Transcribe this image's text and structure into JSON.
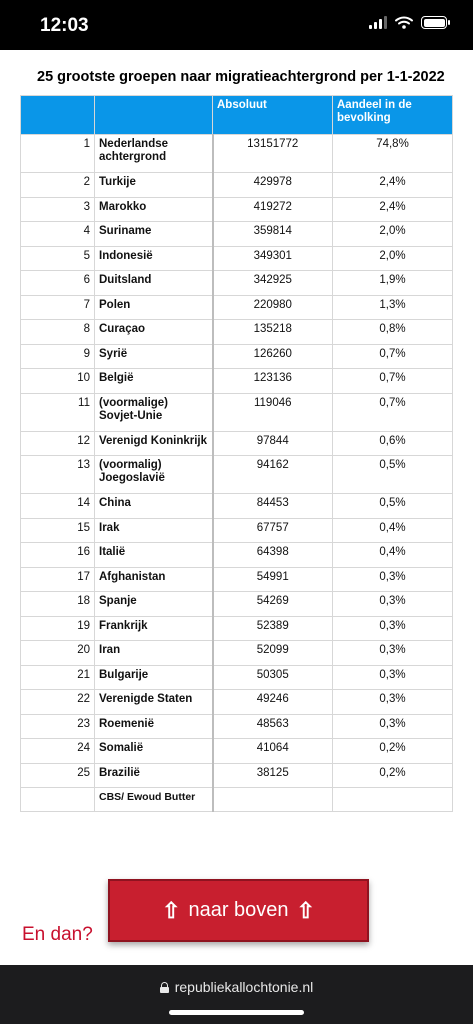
{
  "status_bar": {
    "time": "12:03"
  },
  "page": {
    "title": "25 grootste groepen naar migratieachtergrond per 1-1-2022",
    "columns": [
      "",
      "",
      "Absoluut",
      "Aandeel in de bevolking"
    ],
    "rows": [
      {
        "rank": "1",
        "name": "Nederlandse achtergrond",
        "value": "13151772",
        "share": "74,8%"
      },
      {
        "rank": "2",
        "name": "Turkije",
        "value": "429978",
        "share": "2,4%"
      },
      {
        "rank": "3",
        "name": "Marokko",
        "value": "419272",
        "share": "2,4%"
      },
      {
        "rank": "4",
        "name": "Suriname",
        "value": "359814",
        "share": "2,0%"
      },
      {
        "rank": "5",
        "name": "Indonesië",
        "value": "349301",
        "share": "2,0%"
      },
      {
        "rank": "6",
        "name": "Duitsland",
        "value": "342925",
        "share": "1,9%"
      },
      {
        "rank": "7",
        "name": "Polen",
        "value": "220980",
        "share": "1,3%"
      },
      {
        "rank": "8",
        "name": "Curaçao",
        "value": "135218",
        "share": "0,8%"
      },
      {
        "rank": "9",
        "name": "Syrië",
        "value": "126260",
        "share": "0,7%"
      },
      {
        "rank": "10",
        "name": "België",
        "value": "123136",
        "share": "0,7%"
      },
      {
        "rank": "11",
        "name": "(voormalige) Sovjet-Unie",
        "value": "119046",
        "share": "0,7%"
      },
      {
        "rank": "12",
        "name": "Verenigd Koninkrijk",
        "value": "97844",
        "share": "0,6%"
      },
      {
        "rank": "13",
        "name": "(voormalig) Joegoslavië",
        "value": "94162",
        "share": "0,5%"
      },
      {
        "rank": "14",
        "name": "China",
        "value": "84453",
        "share": "0,5%"
      },
      {
        "rank": "15",
        "name": "Irak",
        "value": "67757",
        "share": "0,4%"
      },
      {
        "rank": "16",
        "name": "Italië",
        "value": "64398",
        "share": "0,4%"
      },
      {
        "rank": "17",
        "name": "Afghanistan",
        "value": "54991",
        "share": "0,3%"
      },
      {
        "rank": "18",
        "name": "Spanje",
        "value": "54269",
        "share": "0,3%"
      },
      {
        "rank": "19",
        "name": "Frankrijk",
        "value": "52389",
        "share": "0,3%"
      },
      {
        "rank": "20",
        "name": "Iran",
        "value": "52099",
        "share": "0,3%"
      },
      {
        "rank": "21",
        "name": "Bulgarije",
        "value": "50305",
        "share": "0,3%"
      },
      {
        "rank": "22",
        "name": "Verenigde Staten",
        "value": "49246",
        "share": "0,3%"
      },
      {
        "rank": "23",
        "name": "Roemenië",
        "value": "48563",
        "share": "0,3%"
      },
      {
        "rank": "24",
        "name": "Somalië",
        "value": "41064",
        "share": "0,2%"
      },
      {
        "rank": "25",
        "name": "Brazilië",
        "value": "38125",
        "share": "0,2%"
      }
    ],
    "source": "CBS/ Ewoud Butter",
    "enddan": "En dan?",
    "top_button": {
      "arrow": "⇧",
      "label": "naar boven"
    }
  },
  "url_bar": {
    "url": "republiekallochtonie.nl",
    "icon": "lock-icon"
  },
  "colors": {
    "header_blue": "#0a96e8",
    "button_red": "#c81f2f",
    "link_red": "#c8102e"
  }
}
